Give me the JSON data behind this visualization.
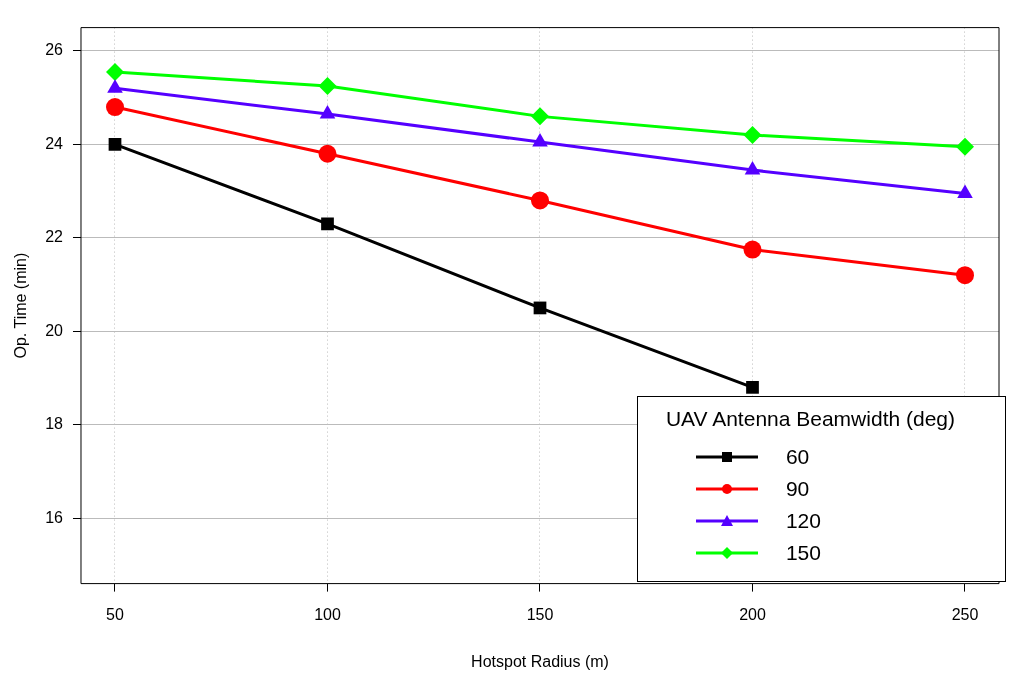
{
  "chart_data": {
    "type": "line",
    "xlabel": "Hotspot Radius (m)",
    "ylabel": "Op. Time (min)",
    "legend_title": "UAV Antenna Beamwidth (deg)",
    "x": [
      50,
      100,
      150,
      200,
      250
    ],
    "series": [
      {
        "name": "60",
        "color": "#000000",
        "marker": "square",
        "values": [
          24.0,
          22.3,
          20.5,
          18.8,
          null
        ]
      },
      {
        "name": "90",
        "color": "#ff0000",
        "marker": "circle",
        "values": [
          24.8,
          23.8,
          22.8,
          21.75,
          21.2
        ]
      },
      {
        "name": "120",
        "color": "#5500ff",
        "marker": "triangle",
        "values": [
          25.2,
          24.65,
          24.05,
          23.45,
          22.95
        ]
      },
      {
        "name": "150",
        "color": "#00ff00",
        "marker": "diamond",
        "values": [
          25.55,
          25.25,
          24.6,
          24.2,
          23.95
        ]
      }
    ],
    "xlim": [
      42,
      258
    ],
    "xticks": [
      50,
      100,
      150,
      200,
      250
    ],
    "ylim": [
      14.6,
      26.5
    ],
    "yticks": [
      16,
      18,
      20,
      22,
      24,
      26
    ],
    "grid": true,
    "legend": "bottom right",
    "line_style": "solid"
  }
}
